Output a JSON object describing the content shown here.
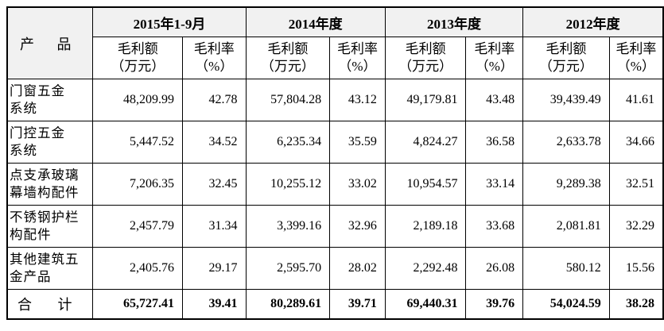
{
  "header": {
    "product_label": "产 品",
    "years": [
      "2015年1-9月",
      "2014年度",
      "2013年度",
      "2012年度"
    ],
    "gross_profit_label": "毛利额\n（万元）",
    "gross_margin_label": "毛利率\n（%）"
  },
  "rows": [
    {
      "product": "门窗五金\n系统",
      "values": [
        "48,209.99",
        "42.78",
        "57,804.28",
        "43.12",
        "49,179.81",
        "43.48",
        "39,439.49",
        "41.61"
      ]
    },
    {
      "product": "门控五金\n系统",
      "values": [
        "5,447.52",
        "34.52",
        "6,235.34",
        "35.59",
        "4,824.27",
        "36.58",
        "2,633.78",
        "34.66"
      ]
    },
    {
      "product": "点支承玻璃\n幕墙构配件",
      "values": [
        "7,206.35",
        "32.45",
        "10,255.12",
        "33.02",
        "10,954.57",
        "33.14",
        "9,289.38",
        "32.51"
      ]
    },
    {
      "product": "不锈钢护栏\n构配件",
      "values": [
        "2,457.79",
        "31.34",
        "3,399.16",
        "32.96",
        "2,189.18",
        "33.68",
        "2,081.81",
        "32.29"
      ]
    },
    {
      "product": "其他建筑五\n金产品",
      "values": [
        "2,405.76",
        "29.17",
        "2,595.70",
        "28.02",
        "2,292.48",
        "26.08",
        "580.12",
        "15.56"
      ]
    }
  ],
  "total": {
    "label": "合 计",
    "values": [
      "65,727.41",
      "39.41",
      "80,289.61",
      "39.71",
      "69,440.31",
      "39.76",
      "54,024.59",
      "38.28"
    ]
  }
}
